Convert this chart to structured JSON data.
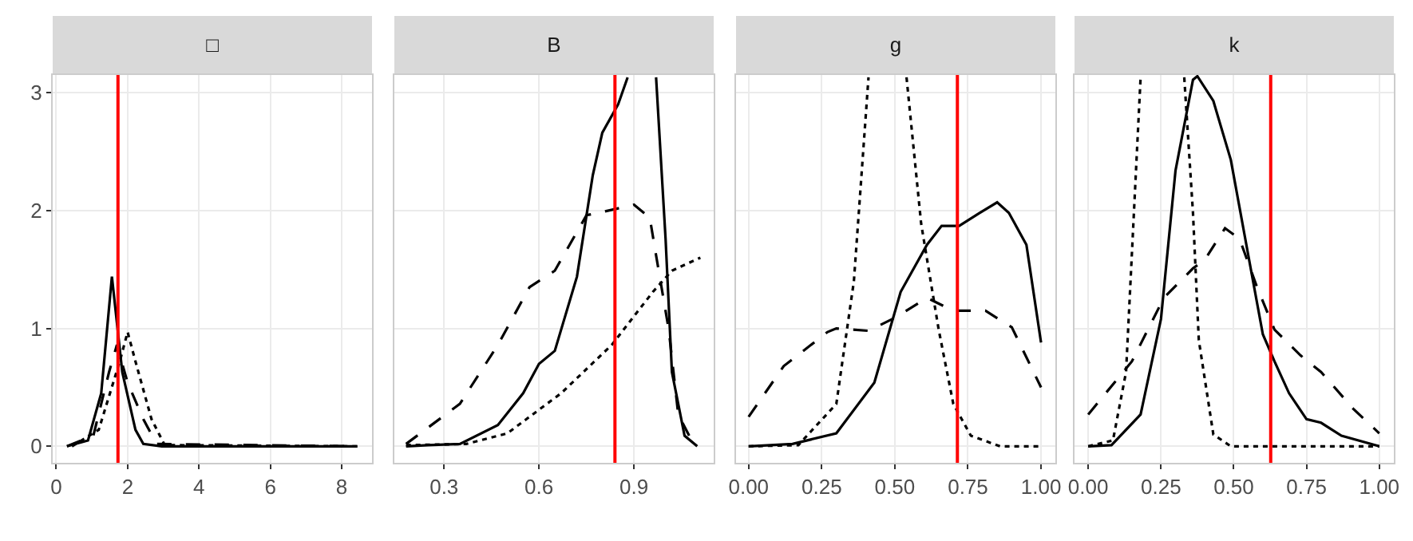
{
  "chart_data": [
    {
      "type": "line",
      "title": "□",
      "xlim": [
        -0.1,
        8.85
      ],
      "xticks": [
        0,
        2,
        4,
        6,
        8
      ],
      "ylim": [
        -0.14,
        3.15
      ],
      "yticks": [
        0,
        1,
        2,
        3
      ],
      "grid": true,
      "ref_lines": [
        {
          "axis": "x",
          "value": 1.73,
          "color": "#ff0000"
        }
      ],
      "series": [
        {
          "color": "#000000",
          "line_style": "solid",
          "x": [
            0.3,
            0.89,
            1.26,
            1.56,
            1.85,
            2.22,
            2.44,
            2.96,
            8.44
          ],
          "values": [
            0,
            0.05,
            0.45,
            1.44,
            0.63,
            0.14,
            0.02,
            0,
            0
          ]
        },
        {
          "color": "#000000",
          "line_style": "dashed",
          "x": [
            0.3,
            1.04,
            1.48,
            1.7,
            2.0,
            2.44,
            2.81,
            8.44
          ],
          "values": [
            0,
            0.09,
            0.63,
            0.86,
            0.54,
            0.23,
            0.02,
            0
          ]
        },
        {
          "color": "#000000",
          "line_style": "dotted",
          "x": [
            0.44,
            1.19,
            1.78,
            2.0,
            2.22,
            2.67,
            3.04,
            8.44
          ],
          "values": [
            0,
            0.14,
            0.72,
            0.97,
            0.72,
            0.23,
            0.01,
            0
          ]
        }
      ]
    },
    {
      "type": "line",
      "title": "B",
      "xlim": [
        0.143,
        1.152
      ],
      "xticks": [
        0.3,
        0.6,
        0.9
      ],
      "ylim": [
        -0.14,
        3.15
      ],
      "yticks": [
        0,
        1,
        2,
        3
      ],
      "grid": true,
      "tick_labels": "x",
      "ref_lines": [
        {
          "axis": "x",
          "value": 0.84,
          "color": "#ff0000"
        }
      ],
      "series": [
        {
          "color": "#000000",
          "line_style": "solid",
          "x": [
            0.18,
            0.25,
            0.35,
            0.47,
            0.55,
            0.6,
            0.65,
            0.72,
            0.77,
            0.8,
            0.85,
            0.88,
            null,
            0.97,
            1.0,
            1.02,
            1.06,
            1.1
          ],
          "values": [
            0,
            0.01,
            0.02,
            0.18,
            0.45,
            0.7,
            0.81,
            1.44,
            2.3,
            2.66,
            2.9,
            3.13,
            null,
            3.13,
            1.76,
            0.63,
            0.09,
            0
          ]
        },
        {
          "color": "#000000",
          "line_style": "dashed",
          "x": [
            0.18,
            0.35,
            0.47,
            0.57,
            0.65,
            0.75,
            0.82,
            0.9,
            0.95,
            0.97,
            1.01,
            1.04,
            1.09
          ],
          "values": [
            0.02,
            0.36,
            0.86,
            1.35,
            1.49,
            1.96,
            2.0,
            2.05,
            1.94,
            1.62,
            0.99,
            0.27,
            0.01
          ]
        },
        {
          "color": "#000000",
          "line_style": "dotted",
          "x": [
            0.18,
            0.37,
            0.5,
            0.67,
            0.83,
            0.96,
            1.02,
            1.11
          ],
          "values": [
            0.01,
            0.02,
            0.11,
            0.45,
            0.86,
            1.31,
            1.49,
            1.6
          ]
        }
      ]
    },
    {
      "type": "line",
      "title": "g",
      "xlim": [
        -0.043,
        1.049
      ],
      "xticks": [
        {
          "value": 0,
          "label": "0.00"
        },
        0.25,
        {
          "value": 0.5,
          "label": "0.50"
        },
        0.75,
        {
          "value": 1,
          "label": "1.00"
        }
      ],
      "ylim": [
        -0.14,
        3.15
      ],
      "yticks": [
        0,
        1,
        2,
        3
      ],
      "grid": true,
      "tick_labels": "x",
      "ref_lines": [
        {
          "axis": "x",
          "value": 0.714,
          "color": "#ff0000"
        }
      ],
      "series": [
        {
          "color": "#000000",
          "line_style": "solid",
          "x": [
            0,
            0.15,
            0.3,
            0.43,
            0.52,
            0.61,
            0.66,
            0.72,
            0.79,
            0.85,
            0.89,
            0.95,
            1.0
          ],
          "values": [
            0,
            0.02,
            0.11,
            0.54,
            1.31,
            1.71,
            1.87,
            1.87,
            1.98,
            2.07,
            1.98,
            1.71,
            0.88
          ]
        },
        {
          "color": "#000000",
          "line_style": "dashed",
          "x": [
            0,
            0.12,
            0.27,
            0.3,
            0.41,
            0.5,
            0.61,
            0.7,
            0.81,
            0.9,
            1.0
          ],
          "values": [
            0.25,
            0.68,
            0.97,
            1.0,
            0.98,
            1.09,
            1.26,
            1.15,
            1.15,
            1.01,
            0.5
          ]
        },
        {
          "color": "#000000",
          "line_style": "dotted",
          "x": [
            0,
            0.17,
            0.3,
            0.36,
            0.41,
            null,
            0.54,
            0.59,
            0.65,
            0.7,
            0.76,
            0.86,
            1.0
          ],
          "values": [
            0,
            0.01,
            0.36,
            1.4,
            3.13,
            null,
            3.13,
            1.89,
            0.99,
            0.36,
            0.09,
            0,
            0
          ]
        }
      ]
    },
    {
      "type": "line",
      "title": "k",
      "xlim": [
        -0.047,
        1.05
      ],
      "xticks": [
        {
          "value": 0,
          "label": "0.00"
        },
        0.25,
        {
          "value": 0.5,
          "label": "0.50"
        },
        0.75,
        {
          "value": 1,
          "label": "1.00"
        }
      ],
      "ylim": [
        -0.14,
        3.15
      ],
      "yticks": [
        0,
        1,
        2,
        3
      ],
      "grid": true,
      "tick_labels": "x",
      "ref_lines": [
        {
          "axis": "x",
          "value": 0.627,
          "color": "#ff0000"
        }
      ],
      "series": [
        {
          "color": "#000000",
          "line_style": "solid",
          "x": [
            0,
            0.08,
            0.18,
            0.25,
            0.3,
            0.36,
            0.375,
            0.43,
            0.49,
            0.55,
            0.6,
            0.64,
            0.69,
            0.75,
            0.8,
            0.87,
            1.0
          ],
          "values": [
            0,
            0.01,
            0.27,
            1.08,
            2.34,
            3.11,
            3.14,
            2.93,
            2.43,
            1.62,
            0.95,
            0.72,
            0.45,
            0.23,
            0.2,
            0.09,
            0
          ]
        },
        {
          "color": "#000000",
          "line_style": "dashed",
          "x": [
            0,
            0.15,
            0.26,
            0.36,
            0.4,
            0.47,
            0.52,
            0.58,
            0.64,
            0.73,
            0.8,
            0.91,
            1.0
          ],
          "values": [
            0.27,
            0.72,
            1.26,
            1.51,
            1.58,
            1.85,
            1.76,
            1.35,
            0.99,
            0.77,
            0.63,
            0.32,
            0.11
          ]
        },
        {
          "color": "#000000",
          "line_style": "dotted",
          "x": [
            0,
            0.085,
            0.13,
            0.18,
            null,
            0.33,
            0.36,
            0.38,
            0.43,
            0.49,
            1.0
          ],
          "values": [
            0,
            0.05,
            0.63,
            3.13,
            null,
            3.13,
            1.98,
            0.9,
            0.1,
            0,
            0
          ]
        }
      ]
    }
  ]
}
